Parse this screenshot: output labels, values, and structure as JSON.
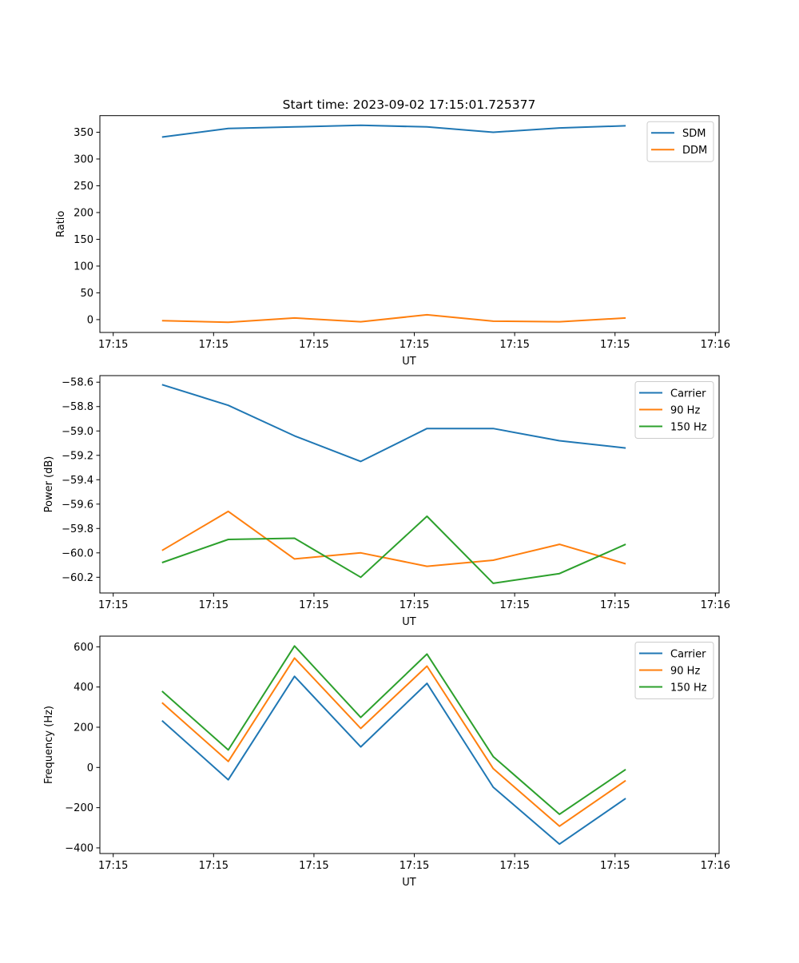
{
  "chart_data": [
    {
      "type": "line",
      "title": "Start time: 2023-09-02 17:15:01.725377",
      "xlabel": "UT",
      "ylabel": "Ratio",
      "x_unit": "seconds after 17:15:00",
      "x": [
        4.86,
        11.46,
        18.06,
        24.66,
        31.26,
        37.86,
        44.46,
        51.06
      ],
      "xlim": [
        -1.33,
        60.37
      ],
      "xticks": [
        0,
        10,
        20,
        30,
        40,
        50,
        60
      ],
      "xtick_labels": [
        "17:15",
        "17:15",
        "17:15",
        "17:15",
        "17:15",
        "17:15",
        "17:16"
      ],
      "ylim": [
        -24,
        381
      ],
      "yticks": [
        0,
        50,
        100,
        150,
        200,
        250,
        300,
        350
      ],
      "ytick_labels": [
        "0",
        "50",
        "100",
        "150",
        "200",
        "250",
        "300",
        "350"
      ],
      "legend_position": "top-right",
      "series": [
        {
          "name": "SDM",
          "color": "#1f77b4",
          "values": [
            341,
            357,
            360,
            363,
            360,
            350,
            358,
            362
          ]
        },
        {
          "name": "DDM",
          "color": "#ff7f0e",
          "values": [
            -2,
            -5,
            3,
            -4,
            9,
            -3,
            -4,
            3
          ]
        }
      ]
    },
    {
      "type": "line",
      "xlabel": "UT",
      "ylabel": "Power (dB)",
      "x_unit": "seconds after 17:15:00",
      "x": [
        4.86,
        11.46,
        18.06,
        24.66,
        31.26,
        37.86,
        44.46,
        51.06
      ],
      "xlim": [
        -1.33,
        60.37
      ],
      "xticks": [
        0,
        10,
        20,
        30,
        40,
        50,
        60
      ],
      "xtick_labels": [
        "17:15",
        "17:15",
        "17:15",
        "17:15",
        "17:15",
        "17:15",
        "17:16"
      ],
      "ylim": [
        -60.329,
        -58.546
      ],
      "yticks": [
        -60.2,
        -60.0,
        -59.8,
        -59.6,
        -59.4,
        -59.2,
        -59.0,
        -58.8,
        -58.6
      ],
      "ytick_labels": [
        "−60.2",
        "−60.0",
        "−59.8",
        "−59.6",
        "−59.4",
        "−59.2",
        "−59.0",
        "−58.8",
        "−58.6"
      ],
      "legend_position": "top-right",
      "series": [
        {
          "name": "Carrier",
          "color": "#1f77b4",
          "values": [
            -58.62,
            -58.79,
            -59.04,
            -59.25,
            -58.98,
            -58.98,
            -59.08,
            -59.14
          ]
        },
        {
          "name": "90 Hz",
          "color": "#ff7f0e",
          "values": [
            -59.98,
            -59.66,
            -60.05,
            -60.0,
            -60.11,
            -60.06,
            -59.93,
            -60.09
          ]
        },
        {
          "name": "150 Hz",
          "color": "#2ca02c",
          "values": [
            -60.08,
            -59.89,
            -59.88,
            -60.2,
            -59.7,
            -60.25,
            -60.17,
            -59.93
          ]
        }
      ]
    },
    {
      "type": "line",
      "xlabel": "UT",
      "ylabel": "Frequency (Hz)",
      "x_unit": "seconds after 17:15:00",
      "x": [
        4.86,
        11.46,
        18.06,
        24.66,
        31.26,
        37.86,
        44.46,
        51.06
      ],
      "xlim": [
        -1.33,
        60.37
      ],
      "xticks": [
        0,
        10,
        20,
        30,
        40,
        50,
        60
      ],
      "xtick_labels": [
        "17:15",
        "17:15",
        "17:15",
        "17:15",
        "17:15",
        "17:15",
        "17:16"
      ],
      "ylim": [
        -428,
        653
      ],
      "yticks": [
        -400,
        -200,
        0,
        200,
        400,
        600
      ],
      "ytick_labels": [
        "−400",
        "−200",
        "0",
        "200",
        "400",
        "600"
      ],
      "legend_position": "top-right",
      "series": [
        {
          "name": "Carrier",
          "color": "#1f77b4",
          "values": [
            233,
            -61,
            453,
            102,
            418,
            -98,
            -381,
            -154
          ]
        },
        {
          "name": "90 Hz",
          "color": "#ff7f0e",
          "values": [
            322,
            30,
            544,
            194,
            504,
            -6,
            -292,
            -65
          ]
        },
        {
          "name": "150 Hz",
          "color": "#2ca02c",
          "values": [
            379,
            87,
            604,
            249,
            564,
            54,
            -233,
            -10
          ]
        }
      ]
    }
  ]
}
